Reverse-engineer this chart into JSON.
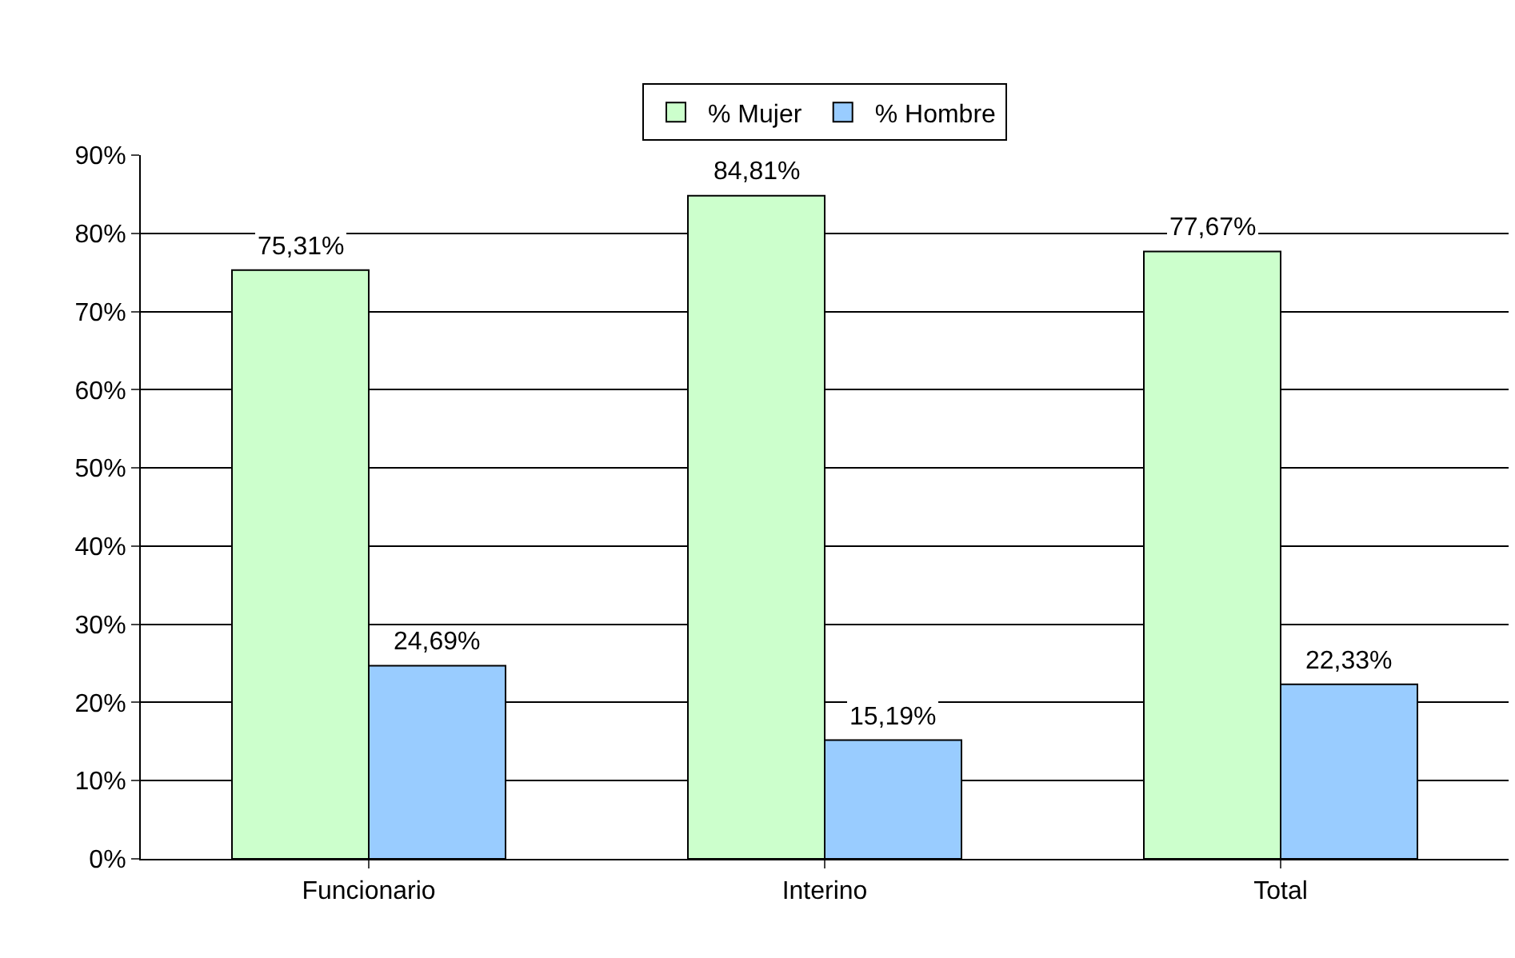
{
  "chart_data": {
    "type": "bar",
    "categories": [
      "Funcionario",
      "Interino",
      "Total"
    ],
    "series": [
      {
        "name": "% Mujer",
        "color": "#ccffcc",
        "values": [
          75.31,
          84.81,
          77.67
        ],
        "value_labels": [
          "75,31%",
          "84,81%",
          "77,67%"
        ]
      },
      {
        "name": "% Hombre",
        "color": "#99ccff",
        "values": [
          24.69,
          15.19,
          22.33
        ],
        "value_labels": [
          "24,69%",
          "15,19%",
          "22,33%"
        ]
      }
    ],
    "ylim": [
      0,
      90
    ],
    "yticks": [
      {
        "value": 0,
        "label": "0%"
      },
      {
        "value": 10,
        "label": "10%"
      },
      {
        "value": 20,
        "label": "20%"
      },
      {
        "value": 30,
        "label": "30%"
      },
      {
        "value": 40,
        "label": "40%"
      },
      {
        "value": 50,
        "label": "50%"
      },
      {
        "value": 60,
        "label": "60%"
      },
      {
        "value": 70,
        "label": "70%"
      },
      {
        "value": 80,
        "label": "80%"
      },
      {
        "value": 90,
        "label": "90%"
      }
    ],
    "grid": "y",
    "legend": "top"
  }
}
